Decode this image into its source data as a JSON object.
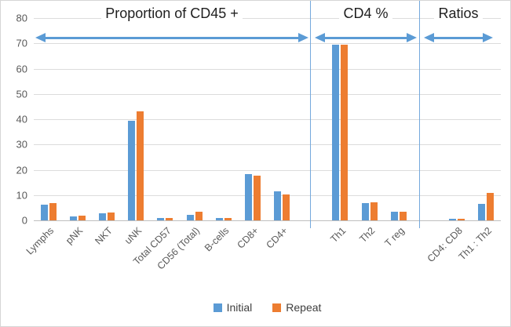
{
  "chart_data": {
    "type": "bar",
    "title": "",
    "categories": [
      "Lymphs",
      "pNK",
      "NKT",
      "uNK",
      "Total CD57",
      "CD56 (Total)",
      "B-cells",
      "CD8+",
      "CD4+",
      "Th1",
      "Th2",
      "T reg",
      "CD4: CD8",
      "Th1 : Th2"
    ],
    "series": [
      {
        "name": "Initial",
        "color": "#5B9BD5",
        "values": [
          6.2,
          1.7,
          2.9,
          39.4,
          0.9,
          2.3,
          1.0,
          18.2,
          11.4,
          69.5,
          6.8,
          3.5,
          0.7,
          6.5
        ]
      },
      {
        "name": "Repeat",
        "color": "#ED7D31",
        "values": [
          6.8,
          2.0,
          3.1,
          43.0,
          0.8,
          3.4,
          0.9,
          17.6,
          10.2,
          69.5,
          7.1,
          3.3,
          0.6,
          11.0
        ]
      }
    ],
    "ylim": [
      0,
      80
    ],
    "ytick_step": 10,
    "grid": "horizontal",
    "legend_position": "bottom",
    "sections": [
      {
        "label": "Proportion of CD45 +",
        "category_span": [
          0,
          8
        ]
      },
      {
        "label": "CD4 %",
        "category_span": [
          9,
          11
        ]
      },
      {
        "label": "Ratios",
        "category_span": [
          12,
          13
        ]
      }
    ],
    "colors": {
      "gridline": "#DCDCDC",
      "axis": "#BFBFBF",
      "annotation_arrow": "#5B9BD5",
      "section_divider": "#74A9DC",
      "tick_text": "#595959"
    }
  }
}
